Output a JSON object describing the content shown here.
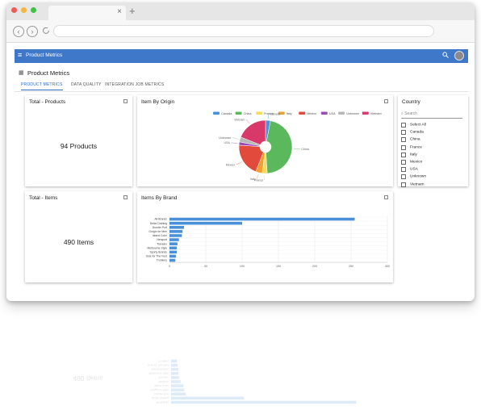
{
  "browser": {
    "colors": {
      "close": "#ee5b55",
      "minimize": "#f4b63f",
      "maximize": "#3ec346"
    },
    "tab_close_glyph": "×",
    "new_tab_glyph": "+"
  },
  "app": {
    "title": "Product Metrics",
    "accent": "#3f78c9"
  },
  "page": {
    "title": "Product Metrics",
    "tabs": [
      {
        "label": "PRODUCT METRICS",
        "active": true
      },
      {
        "label": "DATA QUALITY",
        "active": false
      },
      {
        "label": "INTEGRATION JOB METRICS",
        "active": false
      }
    ]
  },
  "cards": {
    "total_products": {
      "title": "Total - Products",
      "value": "94 Products"
    },
    "total_items": {
      "title": "Total - Items",
      "value": "490 Items"
    },
    "item_by_origin": {
      "title": "Item By Origin"
    },
    "items_by_brand": {
      "title": "Items By Brand"
    }
  },
  "country": {
    "title": "Country",
    "search_placeholder": "Search",
    "items": [
      "Select All",
      "Canada",
      "China",
      "France",
      "Italy",
      "Mexico",
      "USA",
      "Unknown",
      "Vietnam"
    ]
  },
  "chart_data": [
    {
      "type": "pie",
      "title": "Item By Origin",
      "legend_position": "top",
      "series": [
        {
          "name": "Canada",
          "value": 3,
          "color": "#4a90d9"
        },
        {
          "name": "China",
          "value": 46,
          "color": "#5cb85c"
        },
        {
          "name": "France",
          "value": 3,
          "color": "#f3dc5a"
        },
        {
          "name": "Italy",
          "value": 4,
          "color": "#f0a030"
        },
        {
          "name": "Mexico",
          "value": 20,
          "color": "#e24a3b"
        },
        {
          "name": "USA",
          "value": 2,
          "color": "#9a4bb5"
        },
        {
          "name": "Unknown",
          "value": 3,
          "color": "#b7b7b7"
        },
        {
          "name": "Vietnam",
          "value": 19,
          "color": "#d9396a"
        }
      ]
    },
    {
      "type": "bar",
      "orientation": "horizontal",
      "title": "Items By Brand",
      "categories": [
        "Ali Brandz",
        "Delta Clothing",
        "Dunder Port",
        "Gorgio for Men",
        "Island Color",
        "Newport",
        "Travelex",
        "Melbourne Style",
        "Sporty Brands",
        "Sole for The Feet",
        "Trunkery"
      ],
      "values": [
        255,
        100,
        20,
        18,
        17,
        13,
        11,
        10,
        10,
        9,
        8
      ],
      "xlim": [
        0,
        300
      ],
      "xticks": [
        "0",
        "50",
        "100",
        "150",
        "200",
        "250",
        "300"
      ],
      "grid": true,
      "color": "#4a90d9"
    }
  ]
}
